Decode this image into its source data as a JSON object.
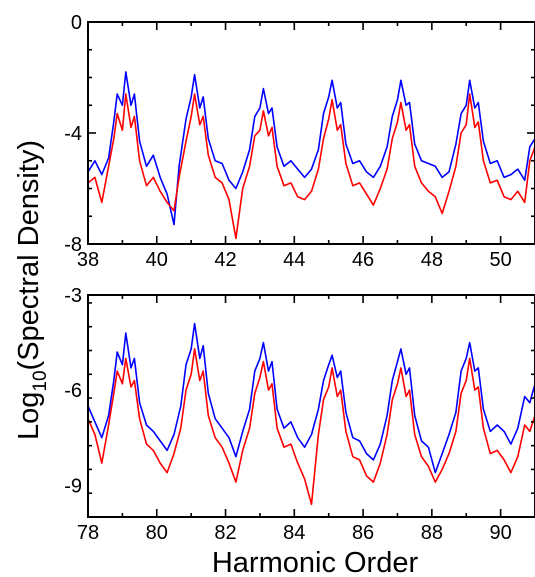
{
  "chart_data": [
    {
      "type": "line",
      "panel": "top",
      "xlabel": "",
      "ylabel": "",
      "xlim": [
        38,
        51
      ],
      "ylim": [
        -8,
        0
      ],
      "xticks": [
        38,
        40,
        42,
        44,
        46,
        48,
        50
      ],
      "yticks": [
        0,
        -4,
        -8
      ],
      "grid": false,
      "series": [
        {
          "color": "#0000ff",
          "x": [
            38.0,
            38.2,
            38.4,
            38.6,
            38.75,
            38.85,
            39.0,
            39.1,
            39.25,
            39.35,
            39.5,
            39.7,
            39.9,
            40.1,
            40.3,
            40.5,
            40.65,
            40.85,
            41.0,
            41.1,
            41.25,
            41.35,
            41.5,
            41.7,
            41.9,
            42.1,
            42.3,
            42.5,
            42.7,
            42.85,
            43.0,
            43.1,
            43.25,
            43.35,
            43.5,
            43.7,
            43.9,
            44.1,
            44.3,
            44.5,
            44.7,
            44.85,
            45.0,
            45.1,
            45.25,
            45.35,
            45.5,
            45.7,
            45.9,
            46.1,
            46.3,
            46.5,
            46.7,
            46.85,
            47.0,
            47.1,
            47.25,
            47.35,
            47.5,
            47.7,
            47.9,
            48.1,
            48.3,
            48.5,
            48.7,
            48.85,
            49.0,
            49.1,
            49.25,
            49.35,
            49.5,
            49.7,
            49.9,
            50.1,
            50.3,
            50.5,
            50.7,
            50.85,
            51.0
          ],
          "y": [
            -5.4,
            -5.0,
            -5.5,
            -4.9,
            -3.6,
            -2.6,
            -3.0,
            -1.8,
            -3.0,
            -2.6,
            -4.3,
            -5.2,
            -4.8,
            -5.6,
            -6.2,
            -7.3,
            -5.2,
            -3.5,
            -2.7,
            -1.9,
            -3.1,
            -2.7,
            -4.2,
            -5.0,
            -5.1,
            -5.7,
            -6.0,
            -5.4,
            -4.6,
            -3.4,
            -3.1,
            -2.4,
            -3.3,
            -3.1,
            -4.5,
            -5.2,
            -5.0,
            -5.3,
            -5.6,
            -5.3,
            -4.6,
            -3.3,
            -2.7,
            -2.1,
            -3.1,
            -2.9,
            -4.4,
            -5.1,
            -5.0,
            -5.4,
            -5.6,
            -5.2,
            -4.5,
            -3.4,
            -2.8,
            -2.1,
            -3.0,
            -2.9,
            -4.4,
            -5.0,
            -5.1,
            -5.2,
            -5.6,
            -5.4,
            -4.4,
            -3.3,
            -3.0,
            -2.1,
            -3.1,
            -2.9,
            -4.3,
            -5.1,
            -5.0,
            -5.6,
            -5.5,
            -5.3,
            -5.7,
            -4.5,
            -4.2
          ]
        },
        {
          "color": "#ff0000",
          "x": [
            38.0,
            38.2,
            38.4,
            38.6,
            38.75,
            38.85,
            39.0,
            39.1,
            39.25,
            39.35,
            39.5,
            39.7,
            39.9,
            40.1,
            40.3,
            40.5,
            40.65,
            40.85,
            41.0,
            41.1,
            41.25,
            41.35,
            41.5,
            41.7,
            41.9,
            42.1,
            42.3,
            42.5,
            42.7,
            42.85,
            43.0,
            43.1,
            43.25,
            43.35,
            43.5,
            43.7,
            43.9,
            44.1,
            44.3,
            44.5,
            44.7,
            44.85,
            45.0,
            45.1,
            45.25,
            45.35,
            45.5,
            45.7,
            45.9,
            46.1,
            46.3,
            46.5,
            46.7,
            46.85,
            47.0,
            47.1,
            47.25,
            47.35,
            47.5,
            47.7,
            47.9,
            48.1,
            48.3,
            48.5,
            48.7,
            48.85,
            49.0,
            49.1,
            49.25,
            49.35,
            49.5,
            49.7,
            49.9,
            50.1,
            50.3,
            50.5,
            50.7,
            50.85,
            51.0
          ],
          "y": [
            -5.8,
            -5.6,
            -6.5,
            -5.2,
            -4.2,
            -3.3,
            -3.9,
            -2.6,
            -3.8,
            -3.4,
            -5.0,
            -5.9,
            -5.6,
            -6.1,
            -6.5,
            -6.8,
            -5.6,
            -4.3,
            -3.4,
            -2.6,
            -3.7,
            -3.4,
            -4.8,
            -5.6,
            -5.8,
            -6.4,
            -7.8,
            -6.0,
            -5.2,
            -4.1,
            -3.9,
            -3.2,
            -4.1,
            -3.8,
            -5.2,
            -5.9,
            -5.8,
            -6.3,
            -6.4,
            -6.1,
            -5.3,
            -4.2,
            -3.5,
            -2.8,
            -3.9,
            -3.7,
            -5.1,
            -5.9,
            -5.8,
            -6.2,
            -6.6,
            -6.0,
            -5.3,
            -4.2,
            -3.6,
            -2.9,
            -3.9,
            -3.7,
            -5.2,
            -5.8,
            -6.1,
            -6.3,
            -6.9,
            -6.1,
            -5.2,
            -4.0,
            -3.7,
            -2.6,
            -3.8,
            -3.6,
            -5.0,
            -5.8,
            -5.7,
            -6.3,
            -6.4,
            -6.1,
            -6.5,
            -5.0,
            -4.5
          ]
        }
      ]
    },
    {
      "type": "line",
      "panel": "bottom",
      "xlabel": "Harmonic Order",
      "ylabel": "",
      "xlim": [
        78,
        91
      ],
      "ylim": [
        -10,
        -3
      ],
      "xticks": [
        78,
        80,
        82,
        84,
        86,
        88,
        90
      ],
      "yticks": [
        -3,
        -6,
        -9
      ],
      "grid": false,
      "series": [
        {
          "color": "#0000ff",
          "x": [
            78.0,
            78.2,
            78.4,
            78.6,
            78.75,
            78.85,
            79.0,
            79.1,
            79.25,
            79.35,
            79.5,
            79.7,
            79.9,
            80.1,
            80.3,
            80.5,
            80.7,
            80.85,
            81.0,
            81.1,
            81.25,
            81.35,
            81.5,
            81.7,
            81.9,
            82.1,
            82.3,
            82.5,
            82.7,
            82.85,
            83.0,
            83.1,
            83.25,
            83.35,
            83.5,
            83.7,
            83.9,
            84.1,
            84.3,
            84.5,
            84.7,
            84.85,
            85.0,
            85.1,
            85.25,
            85.35,
            85.5,
            85.7,
            85.9,
            86.1,
            86.3,
            86.5,
            86.7,
            86.85,
            87.0,
            87.1,
            87.25,
            87.35,
            87.5,
            87.7,
            87.9,
            88.1,
            88.3,
            88.5,
            88.7,
            88.85,
            89.0,
            89.1,
            89.25,
            89.35,
            89.5,
            89.7,
            89.9,
            90.1,
            90.3,
            90.5,
            90.7,
            90.85,
            91.0
          ],
          "y": [
            -6.5,
            -7.0,
            -7.5,
            -6.8,
            -5.7,
            -4.8,
            -5.2,
            -4.2,
            -5.3,
            -5.0,
            -6.4,
            -7.1,
            -7.3,
            -7.6,
            -7.9,
            -7.4,
            -6.5,
            -5.2,
            -4.7,
            -3.9,
            -5.0,
            -4.6,
            -6.1,
            -6.9,
            -7.2,
            -7.5,
            -8.1,
            -7.3,
            -6.6,
            -5.4,
            -5.0,
            -4.5,
            -5.4,
            -5.1,
            -6.6,
            -7.2,
            -7.0,
            -7.5,
            -7.8,
            -7.4,
            -6.6,
            -5.7,
            -5.2,
            -4.9,
            -5.6,
            -5.4,
            -6.7,
            -7.5,
            -7.6,
            -8.0,
            -8.2,
            -7.7,
            -6.8,
            -5.7,
            -5.1,
            -4.7,
            -5.5,
            -5.3,
            -6.8,
            -7.6,
            -7.8,
            -8.6,
            -8.0,
            -7.4,
            -6.7,
            -5.4,
            -5.0,
            -4.5,
            -5.4,
            -5.3,
            -6.6,
            -7.3,
            -7.1,
            -7.3,
            -7.7,
            -7.2,
            -6.2,
            -6.4,
            -5.8
          ]
        },
        {
          "color": "#ff0000",
          "x": [
            78.0,
            78.2,
            78.4,
            78.6,
            78.75,
            78.85,
            79.0,
            79.1,
            79.25,
            79.35,
            79.5,
            79.7,
            79.9,
            80.1,
            80.3,
            80.5,
            80.7,
            80.85,
            81.0,
            81.1,
            81.25,
            81.35,
            81.5,
            81.7,
            81.9,
            82.1,
            82.3,
            82.5,
            82.7,
            82.85,
            83.0,
            83.1,
            83.25,
            83.35,
            83.5,
            83.7,
            83.9,
            84.1,
            84.3,
            84.5,
            84.7,
            84.85,
            85.0,
            85.1,
            85.25,
            85.35,
            85.5,
            85.7,
            85.9,
            86.1,
            86.3,
            86.5,
            86.7,
            86.85,
            87.0,
            87.1,
            87.25,
            87.35,
            87.5,
            87.7,
            87.9,
            88.1,
            88.3,
            88.5,
            88.7,
            88.85,
            89.0,
            89.1,
            89.25,
            89.35,
            89.5,
            89.7,
            89.9,
            90.1,
            90.3,
            90.5,
            90.7,
            90.85,
            91.0
          ],
          "y": [
            -6.9,
            -7.4,
            -8.3,
            -7.1,
            -6.1,
            -5.4,
            -5.8,
            -5.0,
            -5.9,
            -5.7,
            -6.9,
            -7.7,
            -7.9,
            -8.3,
            -8.6,
            -8.0,
            -7.2,
            -6.0,
            -5.5,
            -4.7,
            -5.7,
            -5.4,
            -6.8,
            -7.5,
            -7.8,
            -8.3,
            -8.9,
            -7.9,
            -7.2,
            -6.1,
            -5.6,
            -5.1,
            -6.0,
            -5.8,
            -7.2,
            -7.8,
            -7.7,
            -8.3,
            -8.8,
            -9.6,
            -7.4,
            -6.3,
            -5.9,
            -5.3,
            -6.2,
            -6.0,
            -7.3,
            -8.1,
            -8.2,
            -8.7,
            -8.9,
            -8.3,
            -7.4,
            -6.3,
            -5.8,
            -5.3,
            -6.2,
            -6.0,
            -7.4,
            -8.1,
            -8.4,
            -8.9,
            -8.5,
            -8.0,
            -7.3,
            -6.1,
            -5.7,
            -5.0,
            -6.0,
            -5.9,
            -7.2,
            -8.0,
            -7.9,
            -8.2,
            -8.6,
            -8.1,
            -7.1,
            -7.3,
            -6.8
          ]
        }
      ]
    }
  ],
  "figure": {
    "ylabel_main": "Log",
    "ylabel_sub": "10",
    "ylabel_rest": "(Spectral Density)",
    "xlabel_bottom": "Harmonic Order"
  }
}
